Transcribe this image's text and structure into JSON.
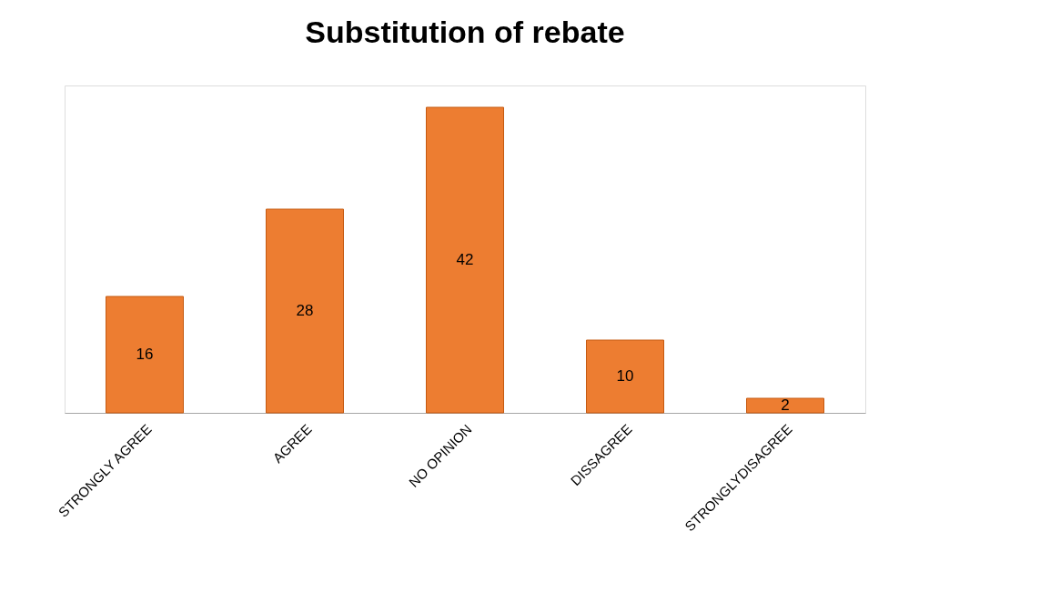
{
  "chart_data": {
    "type": "bar",
    "title": "Substitution of rebate",
    "categories": [
      "STRONGLY AGREE",
      "AGREE",
      "NO OPINION",
      "DISSAGREE",
      "STRONGLYDISAGREE"
    ],
    "values": [
      16,
      28,
      42,
      10,
      2
    ],
    "color": "#ed7d31",
    "data_labels": true,
    "grid": false
  }
}
